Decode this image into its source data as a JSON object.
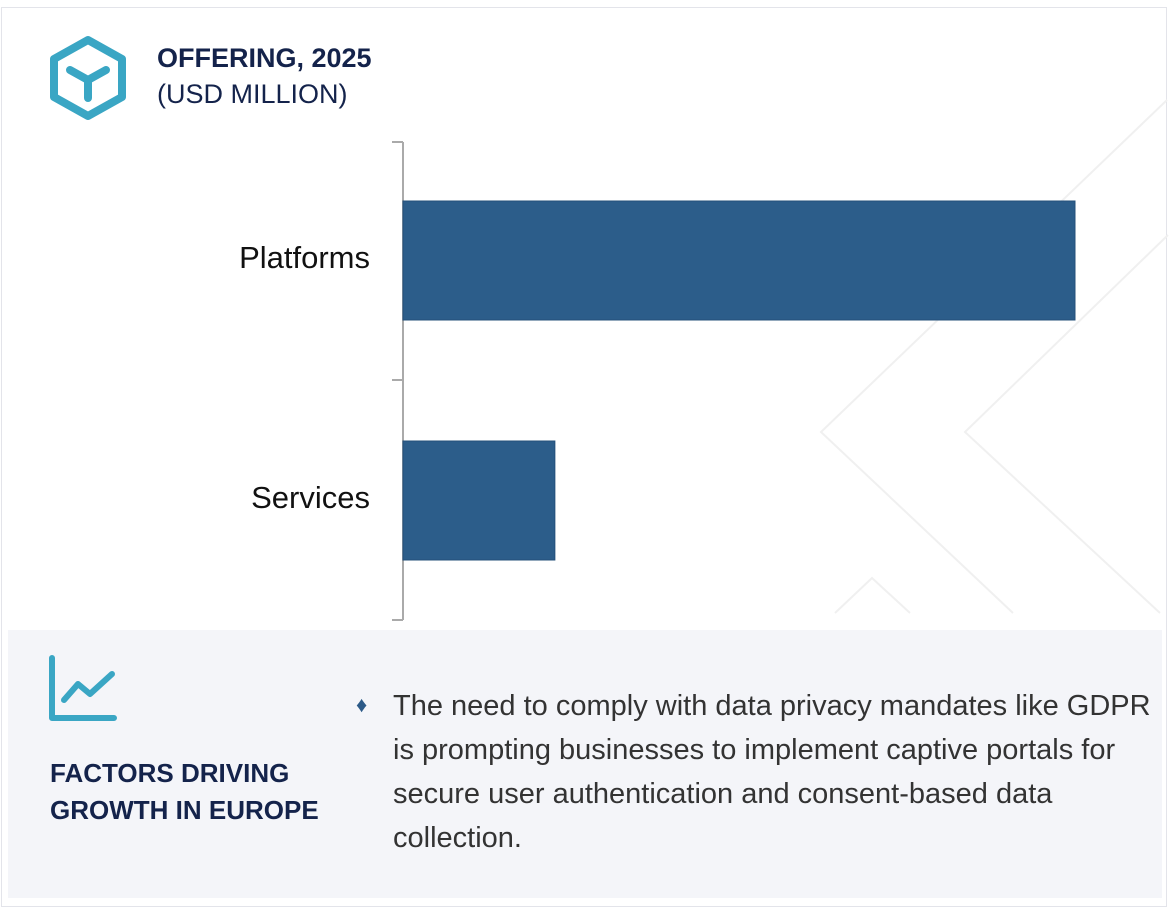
{
  "header": {
    "title": "OFFERING, 2025",
    "subtitle": "(USD MILLION)",
    "icon": "cube-icon"
  },
  "chart_data": {
    "type": "bar",
    "orientation": "horizontal",
    "title": "OFFERING, 2025",
    "subtitle": "(USD MILLION)",
    "categories": [
      "Platforms",
      "Services"
    ],
    "values": [
      1.0,
      0.226
    ],
    "value_note_hidden": "relative",
    "xlim": [
      0,
      1
    ],
    "grid": false,
    "bar_color": "#2c5d8a"
  },
  "factors": {
    "icon": "line-chart-icon",
    "heading_line1": "FACTORS DRIVING",
    "heading_line2": "GROWTH IN EUROPE",
    "bullet_icon": "diamond-icon",
    "text": "The need to comply with data privacy mandates like GDPR is prompting businesses to implement captive portals for secure user authentication and consent-based data collection."
  },
  "colors": {
    "accent": "#3aa6c4",
    "navy": "#14234b",
    "bar": "#2c5d8a",
    "panel": "#f4f5f9"
  }
}
